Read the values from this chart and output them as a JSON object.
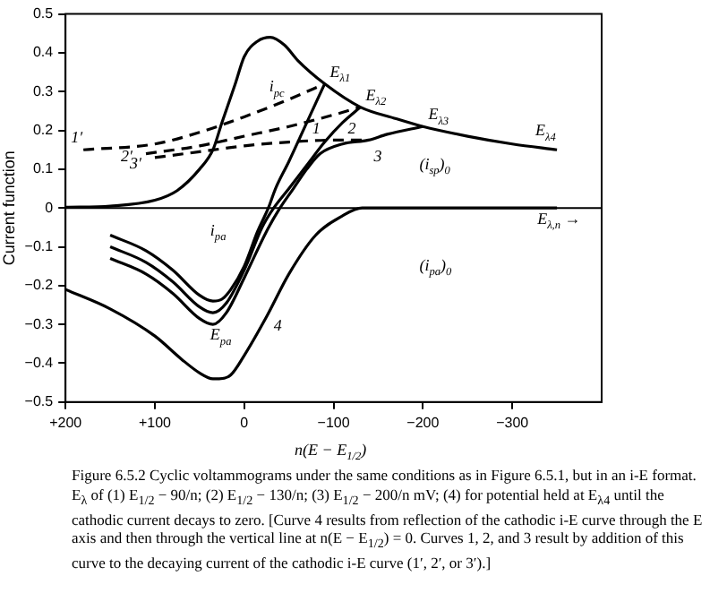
{
  "chart_data": {
    "type": "line",
    "xlabel": "n(E − E$_{1/2}$)",
    "ylabel": "Current function",
    "xlim": [
      200,
      -400
    ],
    "ylim": [
      -0.5,
      0.5
    ],
    "xticks": [
      {
        "value": 200,
        "label": "+200"
      },
      {
        "value": 100,
        "label": "+100"
      },
      0,
      {
        "value": -100,
        "label": "−100"
      },
      {
        "value": -200,
        "label": "−200"
      },
      {
        "value": -300,
        "label": "−300"
      }
    ],
    "yticks": [
      {
        "value": -0.5,
        "label": "−0.5"
      },
      {
        "value": -0.4,
        "label": "−0.4"
      },
      {
        "value": -0.3,
        "label": "−0.3"
      },
      {
        "value": -0.2,
        "label": "−0.2"
      },
      {
        "value": -0.1,
        "label": "−0.1"
      },
      0,
      0.1,
      0.2,
      0.3,
      0.4,
      0.5
    ],
    "grid": false,
    "legend": false,
    "line_style": "solid",
    "marker": "none",
    "ref_lines": [
      {
        "axis": "y",
        "value": 0,
        "color": "#000000"
      }
    ],
    "series": [
      {
        "color": "#000000",
        "x": [
          200,
          150,
          100,
          75,
          50,
          35,
          25,
          10,
          0,
          -15,
          -29,
          -45,
          -60,
          -90,
          -130,
          -170,
          -200,
          -250,
          -300,
          -350
        ],
        "values": [
          0.002,
          0.005,
          0.02,
          0.045,
          0.1,
          0.15,
          0.22,
          0.32,
          0.39,
          0.43,
          0.44,
          0.42,
          0.38,
          0.32,
          0.26,
          0.23,
          0.21,
          0.185,
          0.165,
          0.15
        ]
      },
      {
        "color": "#000000",
        "x": [
          -90,
          -70,
          -50,
          -35,
          -27,
          -15,
          0,
          15,
          25,
          35,
          50,
          80,
          110,
          150
        ],
        "values": [
          0.32,
          0.22,
          0.12,
          0.05,
          0,
          -0.06,
          -0.15,
          -0.21,
          -0.235,
          -0.24,
          -0.225,
          -0.16,
          -0.11,
          -0.07
        ]
      },
      {
        "color": "#000000",
        "x": [
          -130,
          -110,
          -90,
          -70,
          -50,
          -33,
          -20,
          0,
          20,
          35,
          50,
          80,
          110,
          150
        ],
        "values": [
          0.26,
          0.22,
          0.17,
          0.11,
          0.05,
          0,
          -0.05,
          -0.16,
          -0.245,
          -0.27,
          -0.255,
          -0.19,
          -0.14,
          -0.1
        ]
      },
      {
        "color": "#000000",
        "x": [
          -200,
          -160,
          -139,
          -110,
          -85,
          -70,
          -55,
          -40,
          -25,
          0,
          20,
          35,
          50,
          80,
          110,
          150
        ],
        "values": [
          0.21,
          0.19,
          0.175,
          0.165,
          0.14,
          0.1,
          0.05,
          0,
          -0.06,
          -0.18,
          -0.27,
          -0.3,
          -0.285,
          -0.22,
          -0.17,
          -0.13
        ]
      },
      {
        "color": "#000000",
        "x": [
          200,
          150,
          100,
          70,
          50,
          35,
          28,
          15,
          0,
          -25,
          -50,
          -80,
          -110,
          -132,
          -200,
          -350
        ],
        "values": [
          -0.21,
          -0.26,
          -0.33,
          -0.39,
          -0.425,
          -0.44,
          -0.44,
          -0.43,
          -0.38,
          -0.28,
          -0.17,
          -0.07,
          -0.02,
          0,
          0,
          0
        ]
      },
      {
        "color": "#000000",
        "line_style": "dashed",
        "x": [
          180,
          100,
          50,
          0,
          -50,
          -90
        ],
        "values": [
          0.15,
          0.165,
          0.195,
          0.235,
          0.28,
          0.32
        ]
      },
      {
        "color": "#000000",
        "line_style": "dashed",
        "x": [
          110,
          50,
          0,
          -50,
          -100,
          -130
        ],
        "values": [
          0.14,
          0.16,
          0.185,
          0.21,
          0.24,
          0.26
        ]
      },
      {
        "color": "#000000",
        "line_style": "dashed",
        "x": [
          100,
          50,
          0,
          -50,
          -100,
          -139
        ],
        "values": [
          0.13,
          0.145,
          0.16,
          0.17,
          0.175,
          0.175
        ]
      }
    ],
    "annotations": [
      "i$_{pc}$",
      {
        "text": "E$_{λ1}$",
        "x": -90,
        "y": 0.32
      },
      {
        "text": "E$_{λ2}$",
        "x": -130,
        "y": 0.26
      },
      {
        "text": "E$_{λ3}$",
        "x": -200,
        "y": 0.21
      },
      {
        "text": "E$_{λ4}$",
        "x": -350,
        "y": 0.15
      },
      {
        "text": "1",
        "x": -70,
        "y": 0.22
      },
      {
        "text": "2",
        "x": -110,
        "y": 0.22
      },
      {
        "text": "3",
        "x": -139,
        "y": 0.175
      },
      {
        "text": "4",
        "x": -25,
        "y": -0.28
      },
      {
        "text": "1′",
        "x": 180,
        "y": 0.15
      },
      {
        "text": "2′",
        "x": 110,
        "y": 0.14
      },
      {
        "text": "3′",
        "x": 100,
        "y": 0.13
      },
      "i$_{pa}$",
      "E$_{pa}$",
      "(i$_{sp}$)$_{0}$",
      "(i$_{pa}$)$_{0}$",
      "E$_{λ,n}$ →",
      "Figure 6.5.2  Cyclic voltammograms under the same conditions as in Figure 6.5.1, but in an i-E format. E$_{λ}$ of (1) E$_{1/2}$ − 90/n; (2) E$_{1/2}$ − 130/n; (3) E$_{1/2}$ − 200/n mV; (4) for potential held at E$_{λ4}$ until the cathodic current decays to zero. [Curve 4 results from reflection of the cathodic i-E curve through the E axis and then through the vertical line at n(E − E$_{1/2}$) = 0. Curves 1, 2, and 3 result by addition of this curve to the decaying current of the cathodic i-E curve (1′, 2′, or 3′).]"
    ]
  }
}
